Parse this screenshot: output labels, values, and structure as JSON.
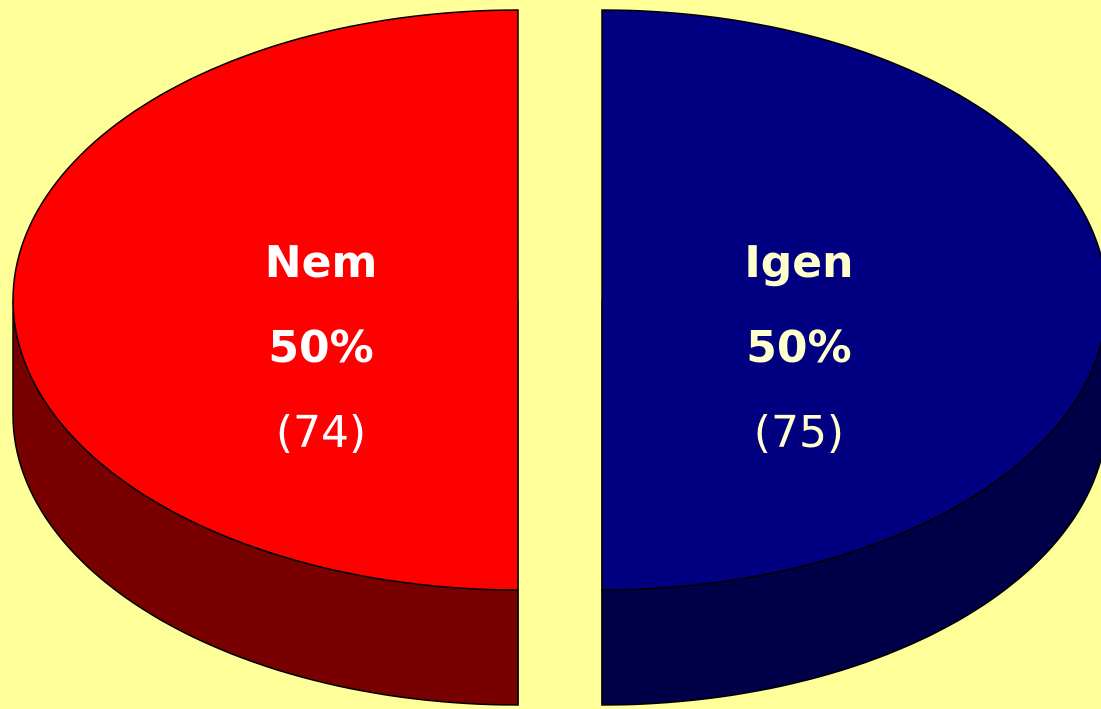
{
  "chart_data": {
    "type": "pie3d",
    "categories": [
      "Nem",
      "Igen"
    ],
    "values": [
      50,
      50
    ],
    "value_labels": [
      "50%",
      "50%"
    ],
    "counts": [
      74,
      75
    ],
    "count_labels": [
      "(74)",
      "(75)"
    ],
    "colors": [
      "#ff0000",
      "#000080"
    ],
    "side_colors": [
      "#780000",
      "#000048"
    ]
  }
}
